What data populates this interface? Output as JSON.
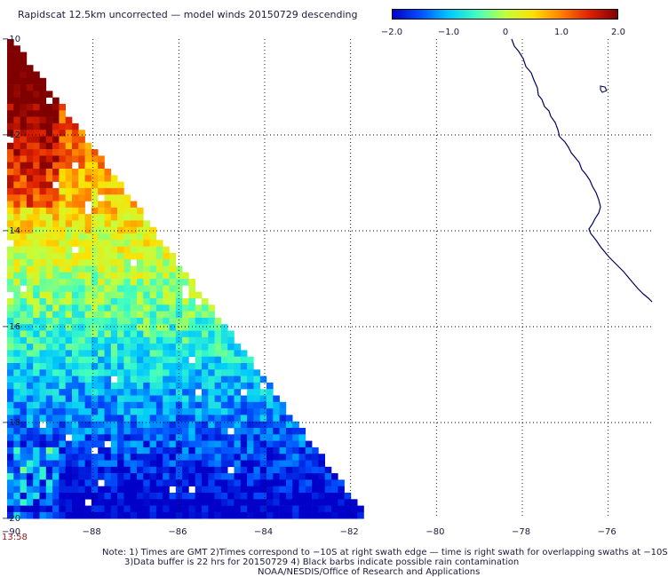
{
  "title": "Rapidscat 12.5km uncorrected — model winds 20150729 descending",
  "colorbar": {
    "ticks": [
      "−2.0",
      "−1.0",
      "0",
      "1.0",
      "2.0"
    ],
    "range": [
      -2.0,
      2.0
    ],
    "colors": [
      "#0000c8",
      "#0050ff",
      "#00c8ff",
      "#40ffc0",
      "#c0ff40",
      "#ffe000",
      "#ff8000",
      "#e02000",
      "#800000"
    ]
  },
  "map": {
    "lat_labels": [
      "−10",
      "−12",
      "−14",
      "−16",
      "−18",
      "−20"
    ],
    "lon_labels": [
      "−90",
      "−88",
      "−86",
      "−84",
      "−82",
      "−80",
      "−78",
      "−76"
    ],
    "lat_extent": [
      -10,
      -20
    ],
    "lon_extent": [
      -90,
      -75
    ],
    "swath_edge": "lower-left triangle bounded by (-90,-10) to (-81.9,-20)",
    "data_trend": "high positive (+2) in north, decreasing to negative (−2) in south",
    "coastline_color": "#00005a"
  },
  "time_label": "13:58",
  "notes": [
    "Note: 1) Times are GMT 2)Times correspond to −10S at right swath edge — time is right swath for overlapping swaths at −10S",
    "3)Data buffer is 22 hrs for 20150729 4) Black barbs indicate possible rain contamination",
    "NOAA/NESDIS/Office of Research and Applications"
  ]
}
